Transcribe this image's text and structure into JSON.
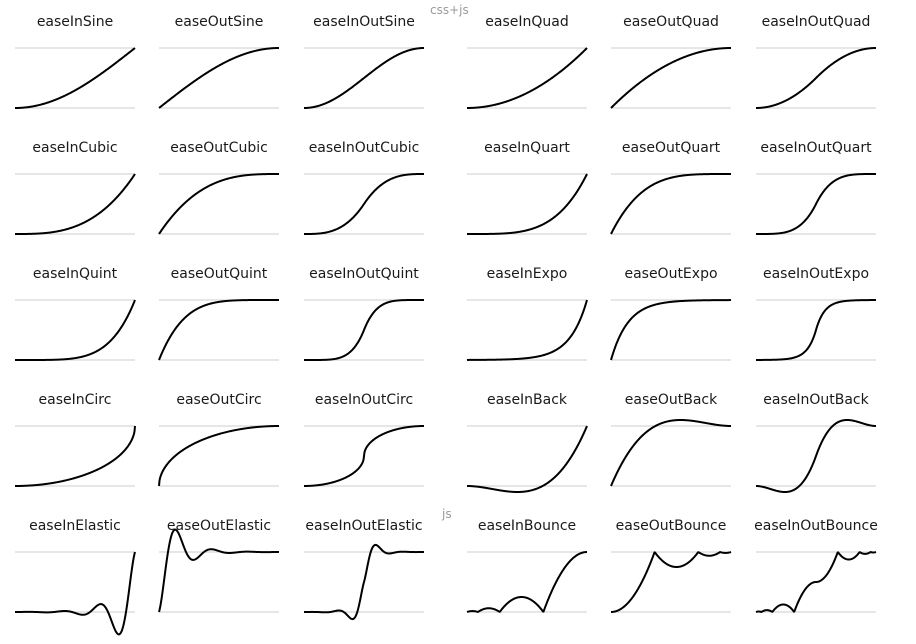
{
  "group_labels": {
    "css_js": "css+js",
    "js": "js"
  },
  "curves": [
    {
      "name": "easeInSine"
    },
    {
      "name": "easeOutSine"
    },
    {
      "name": "easeInOutSine"
    },
    {
      "name": "easeInQuad"
    },
    {
      "name": "easeOutQuad"
    },
    {
      "name": "easeInOutQuad"
    },
    {
      "name": "easeInCubic"
    },
    {
      "name": "easeOutCubic"
    },
    {
      "name": "easeInOutCubic"
    },
    {
      "name": "easeInQuart"
    },
    {
      "name": "easeOutQuart"
    },
    {
      "name": "easeInOutQuart"
    },
    {
      "name": "easeInQuint"
    },
    {
      "name": "easeOutQuint"
    },
    {
      "name": "easeInOutQuint"
    },
    {
      "name": "easeInExpo"
    },
    {
      "name": "easeOutExpo"
    },
    {
      "name": "easeInOutExpo"
    },
    {
      "name": "easeInCirc"
    },
    {
      "name": "easeOutCirc"
    },
    {
      "name": "easeInOutCirc"
    },
    {
      "name": "easeInBack"
    },
    {
      "name": "easeOutBack"
    },
    {
      "name": "easeInOutBack"
    },
    {
      "name": "easeInElastic"
    },
    {
      "name": "easeOutElastic"
    },
    {
      "name": "easeInOutElastic"
    },
    {
      "name": "easeInBounce"
    },
    {
      "name": "easeOutBounce"
    },
    {
      "name": "easeInOutBounce"
    }
  ],
  "colors": {
    "curve": "#000000",
    "baseline": "#cccccc",
    "text": "#1a1a1a",
    "group_label": "#9a9a9a"
  }
}
